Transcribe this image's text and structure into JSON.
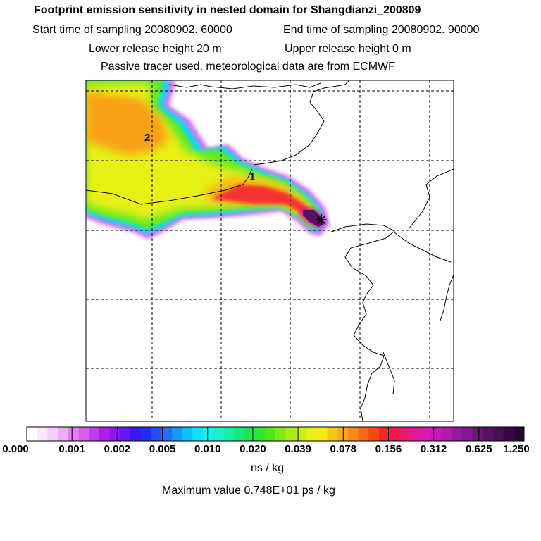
{
  "header": {
    "title": "Footprint emission sensitivity in nested domain for Shangdianzi_200809",
    "start_time": "Start time of sampling 20080902. 60000",
    "end_time": "End time of sampling 20080902. 90000",
    "lower_release": "Lower release height   20 m",
    "upper_release": "Upper release height    0 m",
    "tracer_note": "Passive tracer used, meteorological data are from ECMWF"
  },
  "chart_data": {
    "type": "heatmap",
    "title": "Footprint emission sensitivity in nested domain for Shangdianzi_200809",
    "colorbar": {
      "unit_label": "ns / kg",
      "tick_labels": [
        "0.000",
        "0.001",
        "0.002",
        "0.005",
        "0.010",
        "0.020",
        "0.039",
        "0.078",
        "0.156",
        "0.312",
        "0.625",
        "1.250"
      ],
      "colors": [
        "#ffffff",
        "#fbe8fb",
        "#f4cff4",
        "#eab0ef",
        "#e080ee",
        "#d75ee8",
        "#c43cec",
        "#b01ee8",
        "#8a18f0",
        "#6418f4",
        "#3c18f4",
        "#2030f0",
        "#2050f6",
        "#2070fa",
        "#1898fa",
        "#10bcfa",
        "#10e0fa",
        "#18f0e8",
        "#20f0c8",
        "#18f0a8",
        "#18e880",
        "#18e858",
        "#30e830",
        "#50e818",
        "#80e818",
        "#a8ec18",
        "#c8f018",
        "#e8f018",
        "#f8e818",
        "#f8c818",
        "#f8a818",
        "#f88818",
        "#f86818",
        "#f84818",
        "#f82828",
        "#f01848",
        "#e81878",
        "#e01898",
        "#d818b0",
        "#c818b8",
        "#b018b0",
        "#9818a0",
        "#801890",
        "#681870",
        "#581060",
        "#481050",
        "#380840",
        "#280830"
      ]
    },
    "max_value_text": "Maximum value  0.748E+01 ps / kg",
    "contour_labels": [
      "1",
      "2"
    ],
    "release_site": "Shangdianzi"
  }
}
